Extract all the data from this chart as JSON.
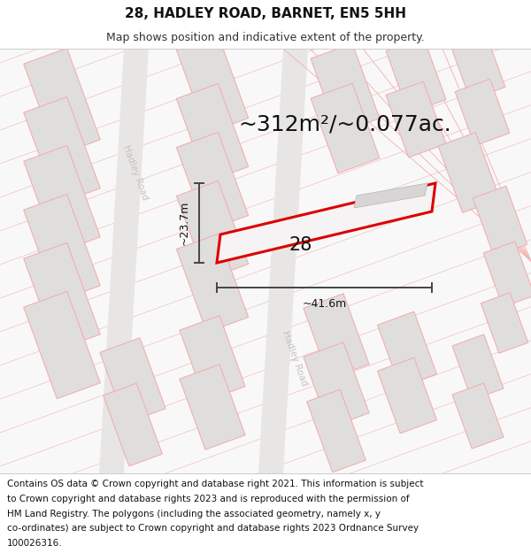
{
  "title": "28, HADLEY ROAD, BARNET, EN5 5HH",
  "subtitle": "Map shows position and indicative extent of the property.",
  "area_text": "~312m²/~0.077ac.",
  "property_number": "28",
  "width_label": "~41.6m",
  "height_label": "~23.7m",
  "footer_lines": [
    "Contains OS data © Crown copyright and database right 2021. This information is subject",
    "to Crown copyright and database rights 2023 and is reproduced with the permission of",
    "HM Land Registry. The polygons (including the associated geometry, namely x, y",
    "co-ordinates) are subject to Crown copyright and database rights 2023 Ordnance Survey",
    "100026316."
  ],
  "title_bg": "#ffffff",
  "footer_bg": "#ffffff",
  "map_bg": "#f9f8f8",
  "road_fill": "#e8e6e5",
  "building_fill": "#e0dedd",
  "building_stroke": "#f0b0b0",
  "plot_stroke": "#dd0000",
  "plot_fill": "#f5f3f3",
  "road_label_color": "#c8c0c0",
  "dim_color": "#444444",
  "diag_line_color": "#f0c0c0",
  "title_fontsize": 11,
  "subtitle_fontsize": 9,
  "footer_fontsize": 7.5,
  "area_fontsize": 18,
  "number_fontsize": 15,
  "dim_fontsize": 9,
  "road_label_fontsize": 7.5
}
